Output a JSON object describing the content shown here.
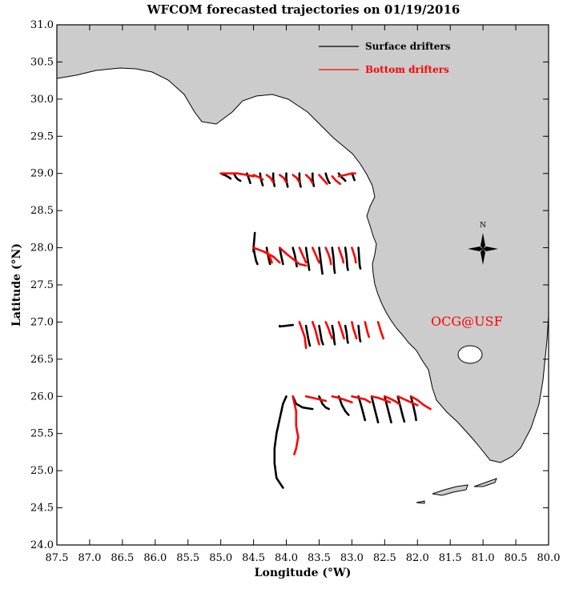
{
  "chart_data": {
    "type": "map",
    "title": "WFCOM forecasted trajectories on 01/19/2016",
    "xlabel": "Longitude (°W)",
    "ylabel": "Latitude (°N)",
    "xlim": [
      87.5,
      80.0
    ],
    "ylim": [
      24.0,
      31.0
    ],
    "x_ticks": [
      "87.5",
      "87.0",
      "86.5",
      "86.0",
      "85.5",
      "85.0",
      "84.5",
      "84.0",
      "83.5",
      "83.0",
      "82.5",
      "82.0",
      "81.5",
      "81.0",
      "80.5",
      "80.0"
    ],
    "y_ticks": [
      "24.0",
      "24.5",
      "25.0",
      "25.5",
      "26.0",
      "26.5",
      "27.0",
      "27.5",
      "28.0",
      "28.5",
      "29.0",
      "29.5",
      "30.0",
      "30.5",
      "31.0"
    ],
    "legend": {
      "placement": "top-right",
      "surface_label": "Surface drifters",
      "bottom_label": "Bottom drifters"
    },
    "colors": {
      "land": "#cccccc",
      "surface": "#000000",
      "bottom": "#ff0000",
      "credit": "#ff0000"
    },
    "credit": "OCG@USF",
    "compass_label": "N",
    "surface_tracks": [
      [
        [
          85.0,
          29.0
        ],
        [
          84.92,
          28.97
        ],
        [
          84.88,
          28.95
        ],
        [
          84.85,
          28.93
        ]
      ],
      [
        [
          84.8,
          29.0
        ],
        [
          84.77,
          28.95
        ],
        [
          84.74,
          28.92
        ],
        [
          84.7,
          28.9
        ]
      ],
      [
        [
          84.6,
          29.0
        ],
        [
          84.58,
          28.95
        ],
        [
          84.56,
          28.9
        ],
        [
          84.55,
          28.87
        ]
      ],
      [
        [
          84.4,
          29.0
        ],
        [
          84.39,
          28.93
        ],
        [
          84.37,
          28.87
        ],
        [
          84.36,
          28.84
        ]
      ],
      [
        [
          84.2,
          29.0
        ],
        [
          84.2,
          28.93
        ],
        [
          84.19,
          28.87
        ],
        [
          84.18,
          28.83
        ]
      ],
      [
        [
          84.0,
          29.0
        ],
        [
          84.0,
          28.93
        ],
        [
          83.99,
          28.86
        ],
        [
          83.98,
          28.82
        ]
      ],
      [
        [
          83.8,
          29.0
        ],
        [
          83.8,
          28.93
        ],
        [
          83.79,
          28.86
        ],
        [
          83.78,
          28.82
        ]
      ],
      [
        [
          83.6,
          29.0
        ],
        [
          83.6,
          28.93
        ],
        [
          83.59,
          28.87
        ],
        [
          83.58,
          28.83
        ]
      ],
      [
        [
          83.4,
          29.0
        ],
        [
          83.38,
          28.94
        ],
        [
          83.36,
          28.9
        ],
        [
          83.34,
          28.87
        ]
      ],
      [
        [
          83.2,
          29.0
        ],
        [
          83.16,
          28.95
        ],
        [
          83.12,
          28.92
        ],
        [
          83.1,
          28.9
        ]
      ],
      [
        [
          83.0,
          29.0
        ],
        [
          82.98,
          28.96
        ],
        [
          82.97,
          28.93
        ],
        [
          82.96,
          28.91
        ]
      ],
      [
        [
          84.5,
          27.95
        ],
        [
          84.5,
          28.0
        ],
        [
          84.49,
          28.1
        ],
        [
          84.48,
          28.2
        ]
      ],
      [
        [
          84.5,
          28.0
        ],
        [
          84.48,
          27.9
        ],
        [
          84.46,
          27.82
        ],
        [
          84.44,
          27.78
        ]
      ],
      [
        [
          84.3,
          28.0
        ],
        [
          84.28,
          27.9
        ],
        [
          84.26,
          27.82
        ],
        [
          84.25,
          27.78
        ]
      ],
      [
        [
          84.1,
          28.0
        ],
        [
          84.08,
          27.9
        ],
        [
          84.06,
          27.82
        ],
        [
          84.05,
          27.78
        ]
      ],
      [
        [
          83.9,
          28.0
        ],
        [
          83.87,
          27.9
        ],
        [
          83.85,
          27.8
        ],
        [
          83.84,
          27.75
        ]
      ],
      [
        [
          83.7,
          28.0
        ],
        [
          83.68,
          27.88
        ],
        [
          83.66,
          27.76
        ],
        [
          83.65,
          27.7
        ]
      ],
      [
        [
          83.5,
          28.0
        ],
        [
          83.48,
          27.86
        ],
        [
          83.46,
          27.72
        ],
        [
          83.45,
          27.65
        ]
      ],
      [
        [
          83.3,
          28.0
        ],
        [
          83.28,
          27.86
        ],
        [
          83.27,
          27.72
        ],
        [
          83.26,
          27.66
        ]
      ],
      [
        [
          83.1,
          28.0
        ],
        [
          83.08,
          27.86
        ],
        [
          83.07,
          27.74
        ],
        [
          83.06,
          27.7
        ]
      ],
      [
        [
          82.9,
          28.0
        ],
        [
          82.89,
          27.87
        ],
        [
          82.88,
          27.76
        ],
        [
          82.87,
          27.72
        ]
      ],
      [
        [
          84.1,
          26.95
        ],
        [
          84.1,
          26.94
        ],
        [
          84.0,
          26.95
        ],
        [
          83.9,
          26.96
        ]
      ],
      [
        [
          83.7,
          26.95
        ],
        [
          83.68,
          26.85
        ],
        [
          83.66,
          26.75
        ],
        [
          83.64,
          26.68
        ]
      ],
      [
        [
          83.5,
          26.95
        ],
        [
          83.48,
          26.85
        ],
        [
          83.46,
          26.75
        ],
        [
          83.44,
          26.7
        ]
      ],
      [
        [
          83.3,
          26.95
        ],
        [
          83.28,
          26.85
        ],
        [
          83.27,
          26.75
        ],
        [
          83.26,
          26.7
        ]
      ],
      [
        [
          83.1,
          26.95
        ],
        [
          83.08,
          26.85
        ],
        [
          83.07,
          26.76
        ],
        [
          83.06,
          26.72
        ]
      ],
      [
        [
          82.9,
          26.95
        ],
        [
          82.89,
          26.86
        ],
        [
          82.88,
          26.78
        ],
        [
          82.87,
          26.74
        ]
      ],
      [
        [
          84.0,
          26.0
        ],
        [
          84.05,
          25.9
        ],
        [
          84.1,
          25.7
        ],
        [
          84.15,
          25.5
        ],
        [
          84.18,
          25.3
        ],
        [
          84.18,
          25.1
        ],
        [
          84.15,
          24.9
        ],
        [
          84.05,
          24.77
        ]
      ],
      [
        [
          83.9,
          26.0
        ],
        [
          83.85,
          25.9
        ],
        [
          83.75,
          25.85
        ],
        [
          83.6,
          25.83
        ]
      ],
      [
        [
          83.5,
          26.0
        ],
        [
          83.45,
          25.9
        ],
        [
          83.4,
          25.85
        ],
        [
          83.35,
          25.83
        ]
      ],
      [
        [
          83.2,
          26.0
        ],
        [
          83.15,
          25.88
        ],
        [
          83.1,
          25.8
        ],
        [
          83.05,
          25.75
        ]
      ],
      [
        [
          82.9,
          26.0
        ],
        [
          82.86,
          25.88
        ],
        [
          82.82,
          25.75
        ],
        [
          82.8,
          25.68
        ]
      ],
      [
        [
          82.7,
          26.0
        ],
        [
          82.66,
          25.86
        ],
        [
          82.62,
          25.72
        ],
        [
          82.6,
          25.65
        ]
      ],
      [
        [
          82.5,
          26.0
        ],
        [
          82.46,
          25.86
        ],
        [
          82.42,
          25.72
        ],
        [
          82.4,
          25.65
        ]
      ],
      [
        [
          82.3,
          26.0
        ],
        [
          82.26,
          25.86
        ],
        [
          82.22,
          25.72
        ],
        [
          82.2,
          25.66
        ]
      ],
      [
        [
          82.1,
          26.0
        ],
        [
          82.06,
          25.86
        ],
        [
          82.03,
          25.74
        ],
        [
          82.02,
          25.68
        ]
      ]
    ],
    "bottom_tracks": [
      [
        [
          85.0,
          29.0
        ],
        [
          84.75,
          29.0
        ],
        [
          84.6,
          28.98
        ],
        [
          84.5,
          28.96
        ]
      ],
      [
        [
          84.5,
          28.98
        ],
        [
          84.42,
          28.95
        ],
        [
          84.36,
          28.92
        ]
      ],
      [
        [
          84.3,
          28.98
        ],
        [
          84.24,
          28.94
        ],
        [
          84.2,
          28.88
        ]
      ],
      [
        [
          84.1,
          28.98
        ],
        [
          84.04,
          28.94
        ],
        [
          84.0,
          28.88
        ]
      ],
      [
        [
          83.9,
          28.98
        ],
        [
          83.84,
          28.94
        ],
        [
          83.8,
          28.88
        ]
      ],
      [
        [
          83.7,
          28.98
        ],
        [
          83.64,
          28.93
        ],
        [
          83.6,
          28.87
        ]
      ],
      [
        [
          83.5,
          28.98
        ],
        [
          83.44,
          28.92
        ],
        [
          83.38,
          28.86
        ]
      ],
      [
        [
          83.3,
          28.96
        ],
        [
          83.24,
          28.9
        ],
        [
          83.18,
          28.86
        ]
      ],
      [
        [
          83.2,
          28.96
        ],
        [
          83.1,
          28.98
        ],
        [
          83.0,
          29.0
        ],
        [
          82.95,
          29.0
        ]
      ],
      [
        [
          84.5,
          28.0
        ],
        [
          84.35,
          27.95
        ],
        [
          84.2,
          27.88
        ],
        [
          84.1,
          27.8
        ]
      ],
      [
        [
          84.3,
          27.95
        ],
        [
          84.25,
          27.87
        ],
        [
          84.22,
          27.8
        ]
      ],
      [
        [
          84.1,
          28.0
        ],
        [
          84.0,
          27.92
        ],
        [
          83.9,
          27.85
        ],
        [
          83.8,
          27.78
        ],
        [
          83.7,
          27.76
        ]
      ],
      [
        [
          83.8,
          28.0
        ],
        [
          83.76,
          27.92
        ],
        [
          83.72,
          27.84
        ],
        [
          83.7,
          27.8
        ]
      ],
      [
        [
          83.6,
          28.0
        ],
        [
          83.56,
          27.92
        ],
        [
          83.52,
          27.84
        ],
        [
          83.5,
          27.8
        ]
      ],
      [
        [
          83.4,
          28.0
        ],
        [
          83.36,
          27.92
        ],
        [
          83.33,
          27.84
        ],
        [
          83.32,
          27.78
        ]
      ],
      [
        [
          83.2,
          28.0
        ],
        [
          83.17,
          27.92
        ],
        [
          83.14,
          27.85
        ],
        [
          83.13,
          27.8
        ]
      ],
      [
        [
          83.0,
          28.0
        ],
        [
          82.97,
          27.92
        ],
        [
          82.95,
          27.86
        ],
        [
          82.94,
          27.8
        ]
      ],
      [
        [
          83.8,
          27.0
        ],
        [
          83.76,
          26.9
        ],
        [
          83.72,
          26.8
        ],
        [
          83.7,
          26.65
        ]
      ],
      [
        [
          83.6,
          27.0
        ],
        [
          83.56,
          26.9
        ],
        [
          83.53,
          26.8
        ],
        [
          83.5,
          26.7
        ]
      ],
      [
        [
          83.4,
          27.0
        ],
        [
          83.36,
          26.92
        ],
        [
          83.33,
          26.84
        ],
        [
          83.3,
          26.78
        ]
      ],
      [
        [
          83.2,
          27.0
        ],
        [
          83.17,
          26.92
        ],
        [
          83.14,
          26.84
        ],
        [
          83.12,
          26.78
        ]
      ],
      [
        [
          83.0,
          27.0
        ],
        [
          82.98,
          26.92
        ],
        [
          82.95,
          26.84
        ],
        [
          82.93,
          26.78
        ]
      ],
      [
        [
          82.8,
          27.0
        ],
        [
          82.78,
          26.93
        ],
        [
          82.76,
          26.86
        ],
        [
          82.74,
          26.8
        ]
      ],
      [
        [
          82.6,
          27.0
        ],
        [
          82.58,
          26.94
        ],
        [
          82.56,
          26.88
        ],
        [
          82.52,
          26.78
        ]
      ],
      [
        [
          83.9,
          26.0
        ],
        [
          83.85,
          25.8
        ],
        [
          83.85,
          25.6
        ],
        [
          83.82,
          25.45
        ],
        [
          83.85,
          25.3
        ],
        [
          83.88,
          25.22
        ]
      ],
      [
        [
          83.7,
          26.0
        ],
        [
          83.6,
          25.98
        ],
        [
          83.5,
          25.96
        ],
        [
          83.4,
          25.94
        ]
      ],
      [
        [
          83.3,
          26.0
        ],
        [
          83.2,
          25.98
        ],
        [
          83.1,
          25.95
        ],
        [
          83.0,
          25.92
        ]
      ],
      [
        [
          83.0,
          26.0
        ],
        [
          82.9,
          25.98
        ],
        [
          82.8,
          25.96
        ],
        [
          82.72,
          25.92
        ]
      ],
      [
        [
          82.7,
          26.0
        ],
        [
          82.6,
          25.98
        ],
        [
          82.5,
          25.95
        ],
        [
          82.42,
          25.92
        ]
      ],
      [
        [
          82.5,
          26.0
        ],
        [
          82.42,
          25.97
        ],
        [
          82.35,
          25.94
        ],
        [
          82.28,
          25.9
        ]
      ],
      [
        [
          82.3,
          26.0
        ],
        [
          82.2,
          25.96
        ],
        [
          82.1,
          25.92
        ],
        [
          82.0,
          25.88
        ]
      ],
      [
        [
          82.1,
          26.0
        ],
        [
          82.0,
          25.95
        ],
        [
          81.9,
          25.88
        ],
        [
          81.8,
          25.83
        ]
      ]
    ]
  }
}
